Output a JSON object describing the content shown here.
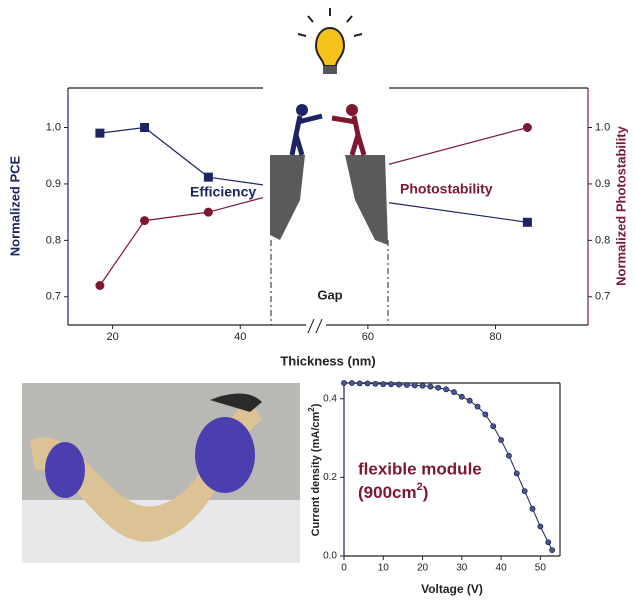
{
  "chart_data": [
    {
      "type": "line",
      "x_label": "Thickness (nm)",
      "y_label": "Normalized PCE",
      "y2_label": "Normalized Photostability",
      "annotation": "Gap",
      "xlim": [
        13,
        94.5
      ],
      "xticks": [
        20,
        40,
        60,
        80
      ],
      "ylim": [
        0.65,
        1.07
      ],
      "yticks": [
        {
          "value": 1,
          "label": "1.0"
        },
        0.9,
        0.8,
        0.7
      ],
      "y2lim": [
        0.65,
        1.07
      ],
      "y2ticks": [
        {
          "value": 1,
          "label": "1.0"
        },
        0.9,
        0.8,
        0.7
      ],
      "series": [
        {
          "name": "Efficiency",
          "color": "#1c2463",
          "marker": "square",
          "x": [
            18,
            25,
            35,
            85
          ],
          "values": [
            0.99,
            1.0,
            0.912,
            0.832
          ]
        },
        {
          "name": "Photostability",
          "color": "#7e1730",
          "marker": "circle",
          "axis": "y2",
          "x": [
            18,
            25,
            35,
            85
          ],
          "values": [
            0.72,
            0.835,
            0.85,
            1.0
          ]
        }
      ]
    },
    {
      "type": "line",
      "x_label": "Voltage (V)",
      "y_label": {
        "text": "Current density (mA/cm",
        "sup": "2",
        "end": ")"
      },
      "annotation": {
        "line1": "flexible module",
        "line2": "(900cm",
        "sup": "2",
        "end": ")"
      },
      "xlim": [
        0,
        55
      ],
      "xticks": [
        0,
        10,
        20,
        30,
        40,
        50
      ],
      "ylim": [
        0,
        0.44
      ],
      "yticks": [
        {
          "value": 0,
          "label": "0.0"
        },
        0.2,
        0.4
      ],
      "series": [
        {
          "name": "J-V",
          "color": "#1c2463",
          "marker": "dot",
          "x": [
            0,
            2,
            4,
            6,
            8,
            10,
            12,
            14,
            16,
            18,
            20,
            22,
            24,
            26,
            28,
            30,
            32,
            34,
            36,
            38,
            40,
            42,
            44,
            46,
            48,
            50,
            52,
            53
          ],
          "values": [
            0.44,
            0.44,
            0.439,
            0.439,
            0.438,
            0.437,
            0.437,
            0.436,
            0.435,
            0.434,
            0.433,
            0.431,
            0.428,
            0.424,
            0.417,
            0.405,
            0.395,
            0.38,
            0.36,
            0.33,
            0.295,
            0.255,
            0.21,
            0.165,
            0.12,
            0.075,
            0.035,
            0.015
          ]
        }
      ]
    }
  ]
}
